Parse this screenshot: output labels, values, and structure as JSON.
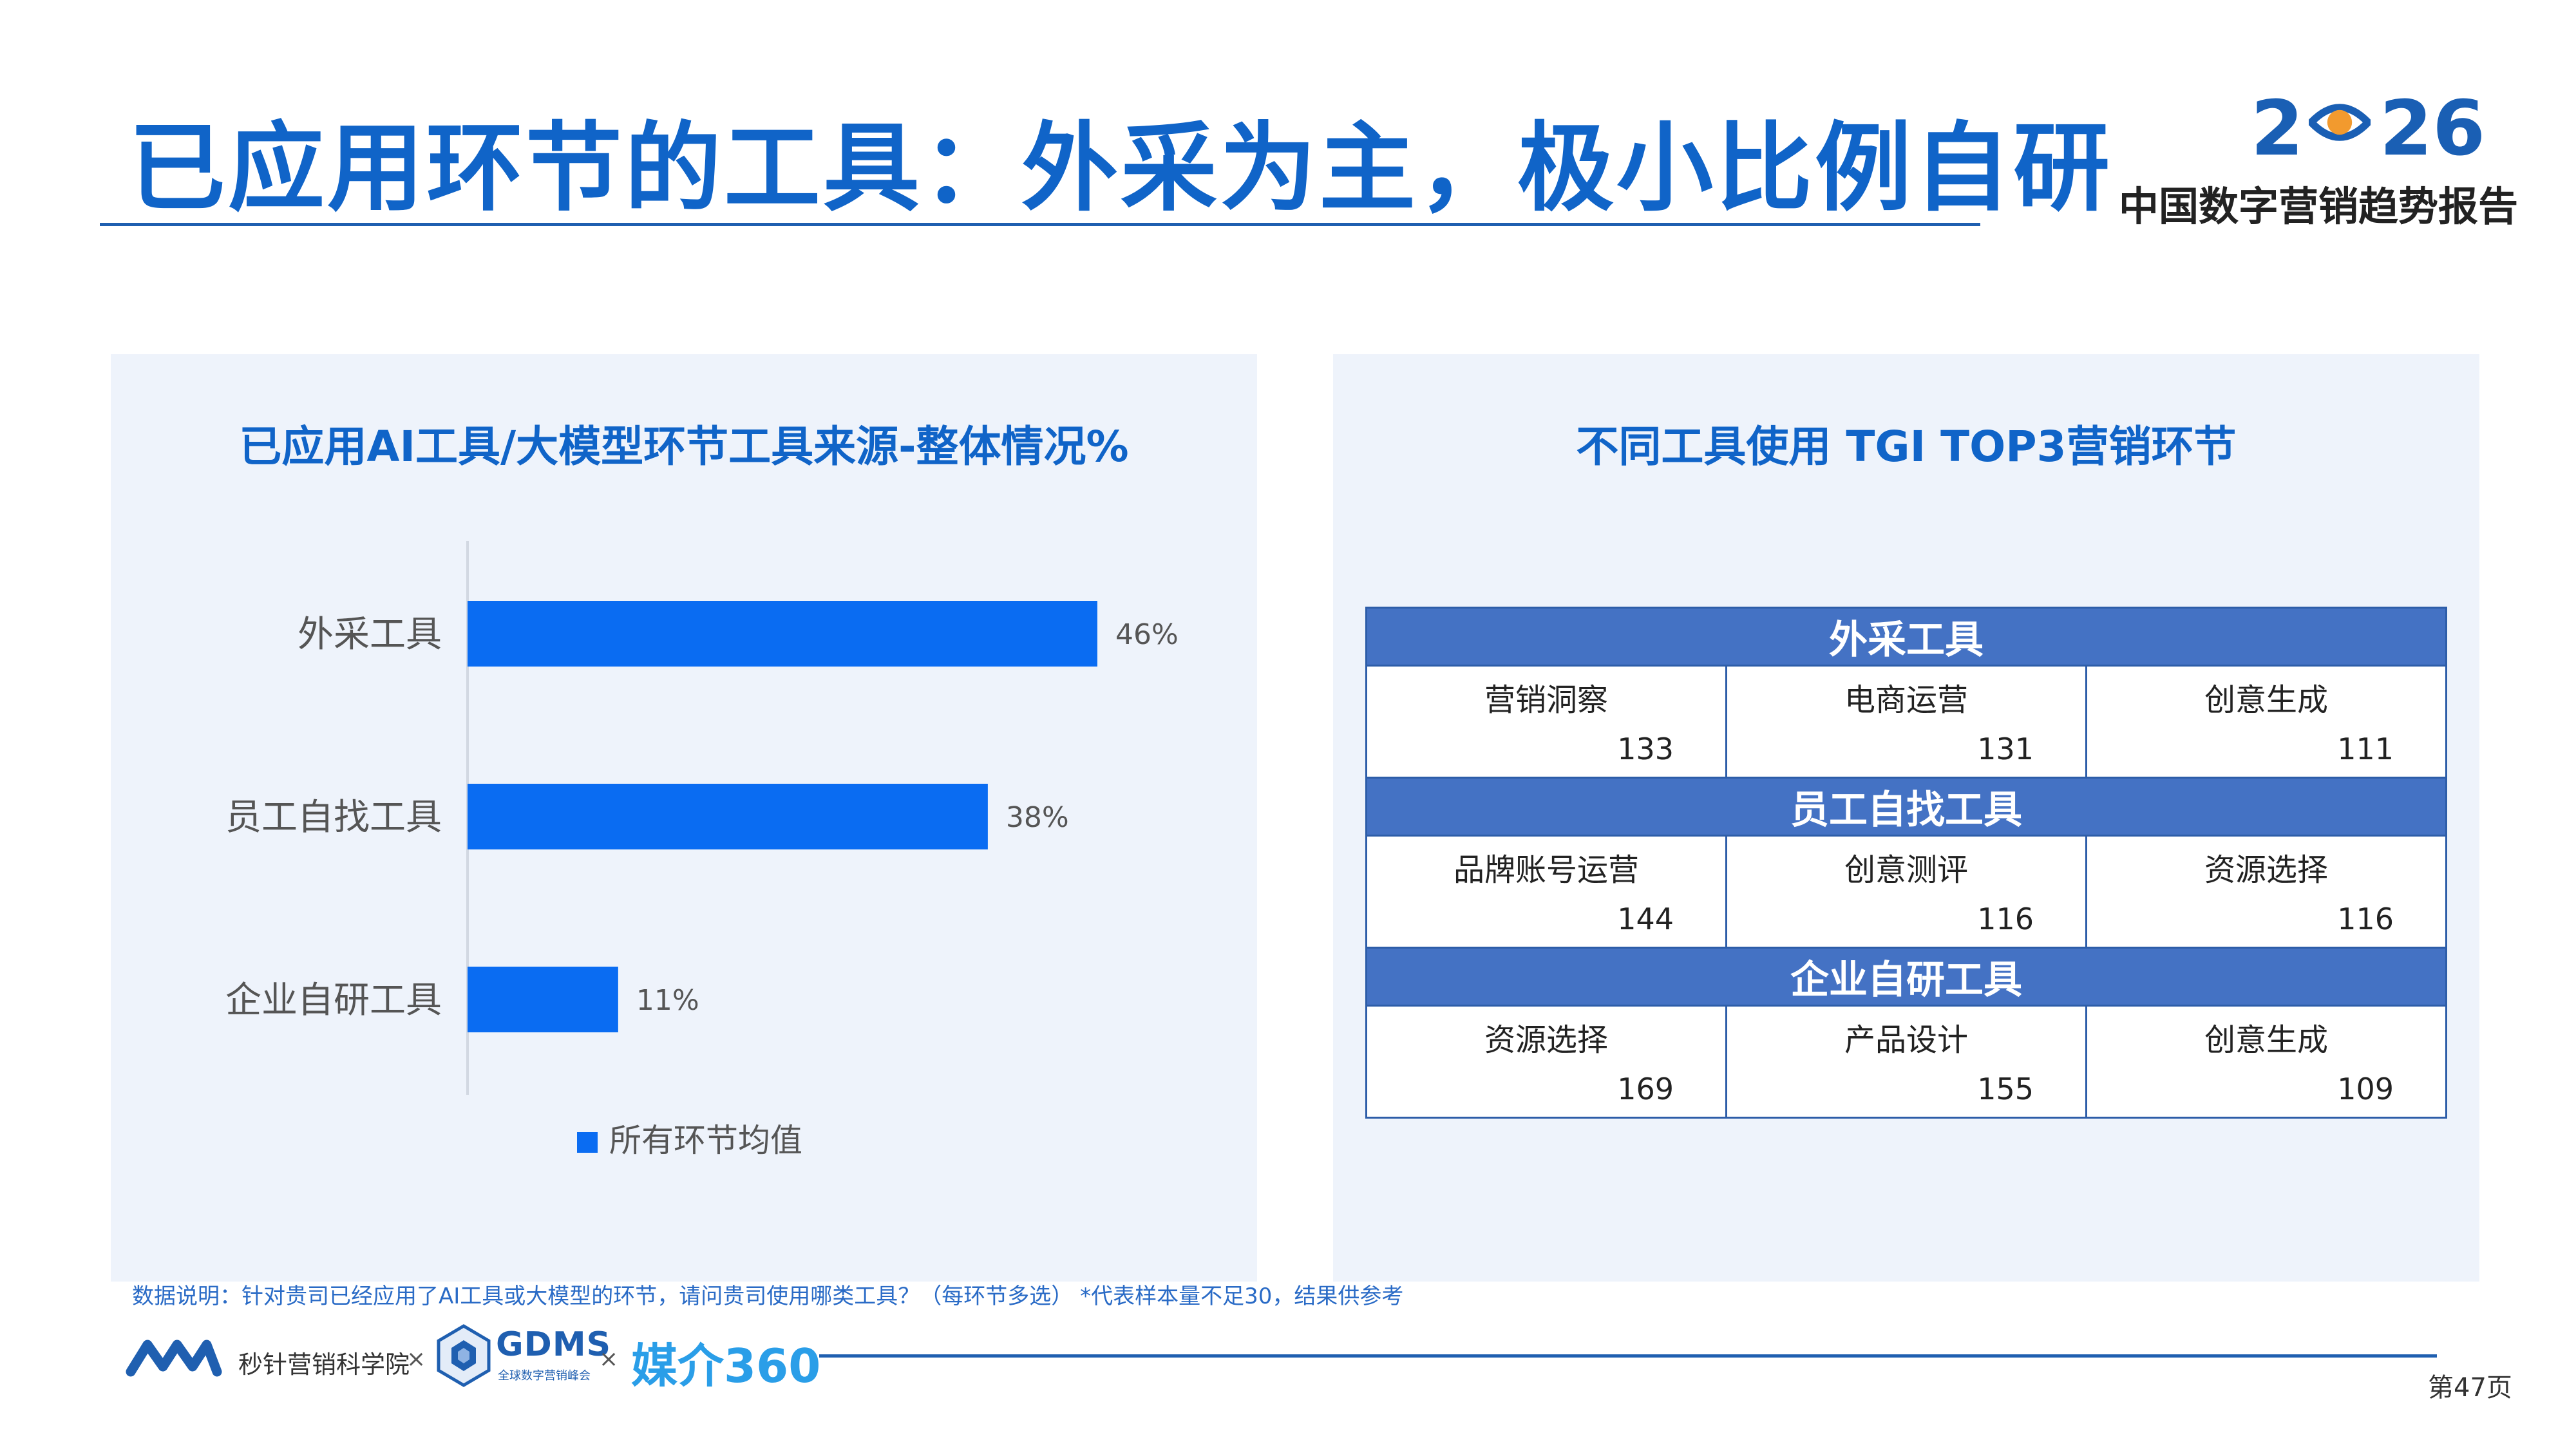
{
  "header": {
    "title": "已应用环节的工具：外采为主，极小比例自研",
    "logo_year_left": "2",
    "logo_year_right": "26",
    "logo_subtitle": "中国数字营销趋势报告",
    "colors": {
      "primary": "#1064c8",
      "accent_orange": "#f29a2e"
    }
  },
  "left_panel": {
    "title": "已应用AI工具/大模型环节工具来源-整体情况%"
  },
  "chart_data": {
    "type": "bar",
    "orientation": "horizontal",
    "categories": [
      "外采工具",
      "员工自找工具",
      "企业自研工具"
    ],
    "series": [
      {
        "name": "所有环节均值",
        "values": [
          46,
          38,
          11
        ],
        "labels": [
          "46%",
          "38%",
          "11%"
        ],
        "color": "#0a6cf2"
      }
    ],
    "xlim": [
      0,
      100
    ],
    "grid": false,
    "legend": "bottom"
  },
  "right_panel": {
    "title": "不同工具使用 TGI TOP3营销环节",
    "groups": [
      {
        "name": "外采工具",
        "items": [
          {
            "name": "营销洞察",
            "value": "133"
          },
          {
            "name": "电商运营",
            "value": "131"
          },
          {
            "name": "创意生成",
            "value": "111"
          }
        ]
      },
      {
        "name": "员工自找工具",
        "items": [
          {
            "name": "品牌账号运营",
            "value": "144"
          },
          {
            "name": "创意测评",
            "value": "116"
          },
          {
            "name": "资源选择",
            "value": "116"
          }
        ]
      },
      {
        "name": "企业自研工具",
        "items": [
          {
            "name": "资源选择",
            "value": "169"
          },
          {
            "name": "产品设计",
            "value": "155"
          },
          {
            "name": "创意生成",
            "value": "109"
          }
        ]
      }
    ]
  },
  "footnote": "数据说明：针对贵司已经应用了AI工具或大模型的环节，请问贵司使用哪类工具？（每环节多选） *代表样本量不足30，结果供参考",
  "footer": {
    "org1": "秒针营销科学院",
    "separator": "×",
    "org2": "GDMS",
    "org2_sub": "全球数字营销峰会",
    "org3": "媒介360",
    "page": "第47页"
  }
}
